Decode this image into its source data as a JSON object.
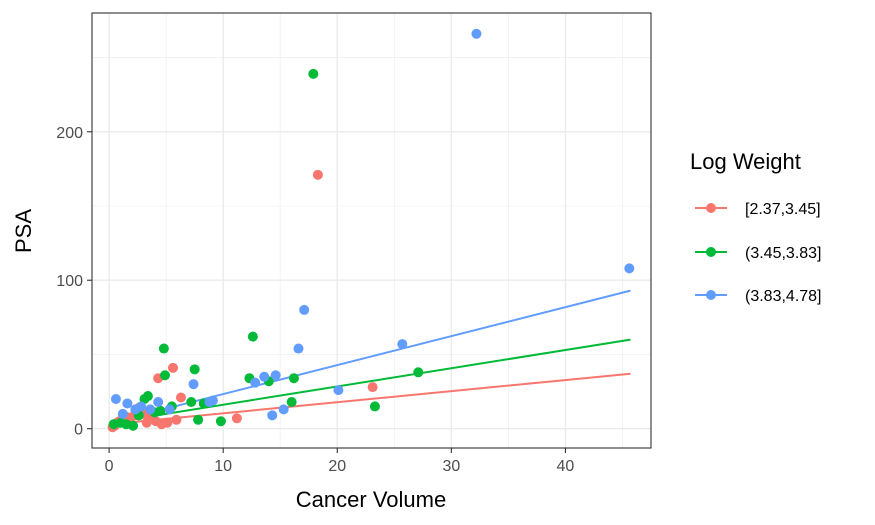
{
  "chart_data": {
    "type": "scatter",
    "title": "",
    "xlabel": "Cancer Volume",
    "ylabel": "PSA",
    "xlim": [
      -1.5,
      47.5
    ],
    "ylim": [
      -13,
      280
    ],
    "x_ticks": [
      0,
      10,
      20,
      30,
      40
    ],
    "y_ticks": [
      0,
      100,
      200
    ],
    "grid": true,
    "legend": {
      "title": "Log Weight",
      "placement": "right"
    },
    "series": [
      {
        "name": "[2.37,3.45]",
        "color": "#F8766D",
        "points": [
          [
            0.3,
            1
          ],
          [
            0.5,
            2
          ],
          [
            0.7,
            4
          ],
          [
            0.9,
            5
          ],
          [
            1.1,
            6
          ],
          [
            1.3,
            7
          ],
          [
            1.5,
            8
          ],
          [
            1.8,
            5
          ],
          [
            2.2,
            9
          ],
          [
            2.6,
            14
          ],
          [
            3.0,
            10
          ],
          [
            3.3,
            4
          ],
          [
            3.6,
            7
          ],
          [
            4.1,
            5
          ],
          [
            4.3,
            34
          ],
          [
            4.6,
            3
          ],
          [
            5.1,
            4
          ],
          [
            5.6,
            41
          ],
          [
            5.9,
            6
          ],
          [
            6.3,
            21
          ],
          [
            11.2,
            7
          ],
          [
            18.3,
            171
          ],
          [
            23.1,
            28
          ]
        ],
        "fit": [
          [
            0.1,
            3
          ],
          [
            45.7,
            37
          ]
        ]
      },
      {
        "name": "(3.45,3.83]",
        "color": "#00BA38",
        "points": [
          [
            0.4,
            3
          ],
          [
            1.0,
            4
          ],
          [
            1.5,
            3
          ],
          [
            2.1,
            2
          ],
          [
            2.6,
            9
          ],
          [
            3.1,
            20
          ],
          [
            3.4,
            22
          ],
          [
            4.0,
            11
          ],
          [
            4.5,
            12
          ],
          [
            4.8,
            54
          ],
          [
            4.9,
            36
          ],
          [
            5.5,
            15
          ],
          [
            7.2,
            18
          ],
          [
            7.5,
            40
          ],
          [
            7.8,
            6
          ],
          [
            8.3,
            17
          ],
          [
            9.8,
            5
          ],
          [
            12.3,
            34
          ],
          [
            12.6,
            62
          ],
          [
            14.0,
            32
          ],
          [
            16.0,
            18
          ],
          [
            16.2,
            34
          ],
          [
            17.9,
            239
          ],
          [
            23.3,
            15
          ],
          [
            27.1,
            38
          ]
        ],
        "fit": [
          [
            0.1,
            4
          ],
          [
            45.7,
            60
          ]
        ]
      },
      {
        "name": "(3.83,4.78]",
        "color": "#619CFF",
        "points": [
          [
            0.6,
            20
          ],
          [
            1.2,
            10
          ],
          [
            1.6,
            17
          ],
          [
            2.3,
            13
          ],
          [
            2.8,
            15
          ],
          [
            3.6,
            13
          ],
          [
            4.3,
            18
          ],
          [
            5.3,
            13
          ],
          [
            7.4,
            30
          ],
          [
            8.8,
            18
          ],
          [
            9.1,
            19
          ],
          [
            12.8,
            31
          ],
          [
            13.6,
            35
          ],
          [
            14.3,
            9
          ],
          [
            14.6,
            36
          ],
          [
            15.3,
            13
          ],
          [
            16.6,
            54
          ],
          [
            17.1,
            80
          ],
          [
            20.1,
            26
          ],
          [
            25.7,
            57
          ],
          [
            32.2,
            266
          ],
          [
            45.6,
            108
          ]
        ],
        "fit": [
          [
            0.1,
            4
          ],
          [
            45.7,
            93
          ]
        ]
      }
    ]
  }
}
